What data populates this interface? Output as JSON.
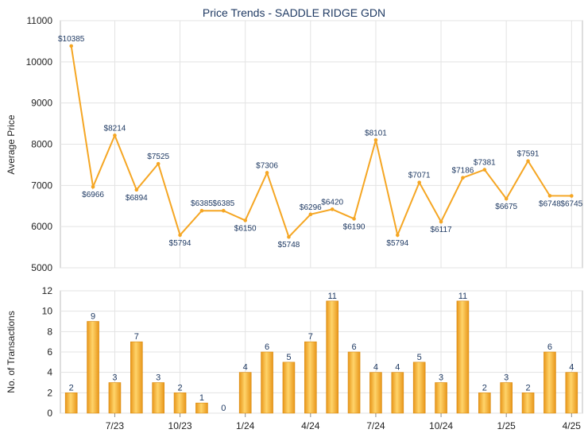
{
  "chart_data": [
    {
      "type": "line",
      "title": "Price Trends - SADDLE RIDGE GDN",
      "ylabel": "Average Price",
      "ylim": [
        5000,
        11000
      ],
      "yticks": [
        5000,
        6000,
        7000,
        8000,
        9000,
        10000,
        11000
      ],
      "grid": true,
      "color": "#f5a623",
      "values": [
        10385,
        6966,
        8214,
        6894,
        7525,
        5794,
        6385,
        6385,
        6150,
        7306,
        5748,
        6296,
        6420,
        6190,
        8101,
        5794,
        7071,
        6117,
        7186,
        7381,
        6675,
        7591,
        6748,
        6745
      ],
      "labels": [
        "$10385",
        "$6966",
        "$8214",
        "$6894",
        "$7525",
        "$5794",
        "$6385",
        "$6385",
        "$6150",
        "$7306",
        "$5748",
        "$6296",
        "$6420",
        "$6190",
        "$8101",
        "$5794",
        "$7071",
        "$6117",
        "$7186",
        "$7381",
        "$6675",
        "$7591",
        "$6748",
        "$6745"
      ]
    },
    {
      "type": "bar",
      "ylabel": "No. of Transactions",
      "ylim": [
        0,
        12
      ],
      "yticks": [
        0,
        2,
        4,
        6,
        8,
        10,
        12
      ],
      "grid": true,
      "color": "#f5a623",
      "values": [
        2,
        9,
        3,
        7,
        3,
        2,
        1,
        0,
        4,
        6,
        5,
        7,
        11,
        6,
        4,
        4,
        5,
        3,
        11,
        2,
        3,
        2,
        6,
        4
      ],
      "xticks": [
        {
          "label": "7/23",
          "index": 2
        },
        {
          "label": "10/23",
          "index": 5
        },
        {
          "label": "1/24",
          "index": 8
        },
        {
          "label": "4/24",
          "index": 11
        },
        {
          "label": "7/24",
          "index": 14
        },
        {
          "label": "10/24",
          "index": 17
        },
        {
          "label": "1/25",
          "index": 20
        },
        {
          "label": "4/25",
          "index": 23
        }
      ]
    }
  ]
}
